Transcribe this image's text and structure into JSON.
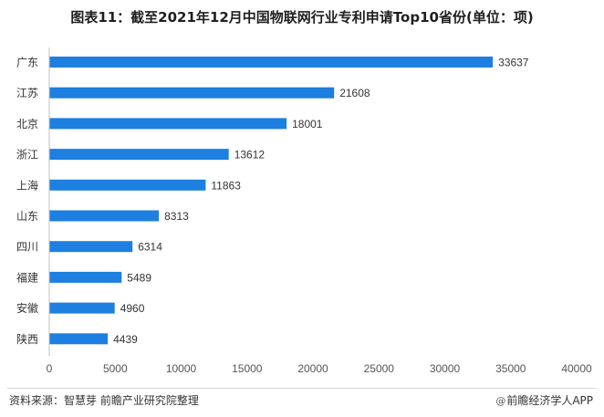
{
  "title": "图表11：截至2021年12月中国物联网行业专利申请Top10省份(单位：项)",
  "source": "资料来源：智慧芽 前瞻产业研究院整理",
  "brand": {
    "icon": "at-sign-icon",
    "symbol": "@",
    "text": "前瞻经济学人APP"
  },
  "colors": {
    "bar": "#1d7fe0",
    "axis": "#bfbfbf",
    "text": "#333333"
  },
  "chart_data": {
    "type": "bar",
    "orientation": "horizontal",
    "title": "图表11：截至2021年12月中国物联网行业专利申请Top10省份(单位：项)",
    "xlabel": "",
    "ylabel": "",
    "categories": [
      "广东",
      "江苏",
      "北京",
      "浙江",
      "上海",
      "山东",
      "四川",
      "福建",
      "安徽",
      "陕西"
    ],
    "values": [
      33637,
      21608,
      18001,
      13612,
      11863,
      8313,
      6314,
      5489,
      4960,
      4439
    ],
    "xlim": [
      0,
      40000
    ],
    "xticks": [
      0,
      5000,
      10000,
      15000,
      20000,
      25000,
      30000,
      35000,
      40000
    ],
    "grid": false,
    "legend": "none",
    "data_labels": true
  }
}
